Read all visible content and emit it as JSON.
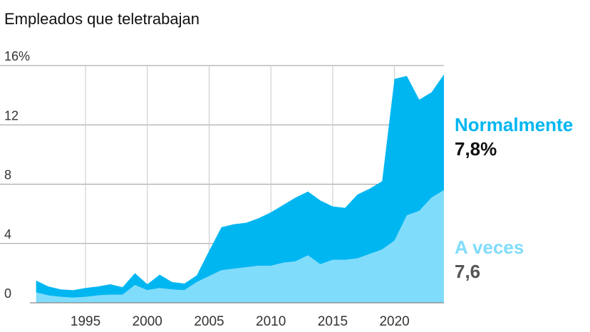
{
  "chart_data": {
    "type": "area",
    "stacked": true,
    "title": "Empleados que teletrabajan",
    "ylim": [
      0,
      16
    ],
    "yticks": [
      {
        "value": 0,
        "label": "0"
      },
      {
        "value": 4,
        "label": "4"
      },
      {
        "value": 8,
        "label": "8"
      },
      {
        "value": 12,
        "label": "12"
      },
      {
        "value": 16,
        "label": "16%"
      }
    ],
    "xlim": [
      1990.5,
      2024
    ],
    "xticks": [
      {
        "value": 1995,
        "label": "1995"
      },
      {
        "value": 2000,
        "label": "2000"
      },
      {
        "value": 2005,
        "label": "2005"
      },
      {
        "value": 2010,
        "label": "2010"
      },
      {
        "value": 2015,
        "label": "2015"
      },
      {
        "value": 2020,
        "label": "2020"
      }
    ],
    "x": [
      1991,
      1992,
      1993,
      1994,
      1995,
      1996,
      1997,
      1998,
      1999,
      2000,
      2001,
      2002,
      2003,
      2004,
      2005,
      2006,
      2007,
      2008,
      2009,
      2010,
      2011,
      2012,
      2013,
      2014,
      2015,
      2016,
      2017,
      2018,
      2019,
      2020,
      2021,
      2022,
      2023,
      2024
    ],
    "series": [
      {
        "name": "A veces",
        "color": "#80dcfb",
        "values": [
          0.7,
          0.5,
          0.4,
          0.35,
          0.4,
          0.5,
          0.55,
          0.55,
          1.2,
          0.85,
          1.0,
          0.9,
          0.85,
          1.4,
          1.8,
          2.2,
          2.3,
          2.4,
          2.5,
          2.5,
          2.7,
          2.8,
          3.2,
          2.6,
          2.9,
          2.9,
          3.0,
          3.3,
          3.6,
          4.2,
          5.9,
          6.2,
          7.1,
          7.6
        ]
      },
      {
        "name": "Normalmente",
        "color": "#00b6f1",
        "values": [
          0.8,
          0.6,
          0.5,
          0.5,
          0.6,
          0.6,
          0.7,
          0.5,
          0.8,
          0.4,
          0.9,
          0.5,
          0.45,
          0.45,
          1.7,
          2.9,
          3.0,
          3.0,
          3.2,
          3.6,
          3.9,
          4.3,
          4.3,
          4.3,
          3.6,
          3.5,
          4.3,
          4.4,
          4.6,
          10.9,
          9.4,
          7.5,
          7.1,
          7.8
        ]
      }
    ],
    "labels": [
      {
        "series": "Normalmente",
        "name": "Normalmente",
        "value": "7,8%",
        "name_color": "#00b6f1",
        "value_color": "#111111"
      },
      {
        "series": "A veces",
        "name": "A veces",
        "value": "7,6",
        "name_color": "#80dcfb",
        "value_color": "#555555"
      }
    ]
  }
}
